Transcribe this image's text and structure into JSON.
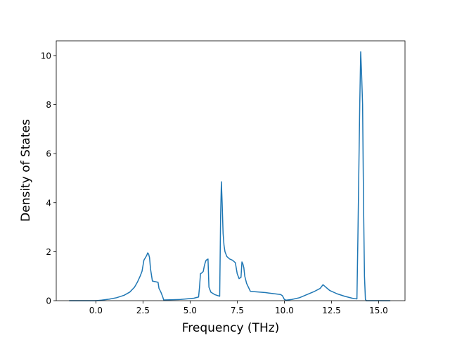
{
  "chart_data": {
    "type": "line",
    "title": "",
    "xlabel": "Frequency (THz)",
    "ylabel": "Density of States",
    "xlim": [
      -2.1,
      16.4
    ],
    "ylim": [
      0,
      10.6
    ],
    "grid": false,
    "x_ticks": [
      0.0,
      2.5,
      5.0,
      7.5,
      10.0,
      12.5,
      15.0
    ],
    "x_tick_labels": [
      "0.0",
      "2.5",
      "5.0",
      "7.5",
      "10.0",
      "12.5",
      "15.0"
    ],
    "y_ticks": [
      0,
      2,
      4,
      6,
      8,
      10
    ],
    "y_tick_labels": [
      "0",
      "2",
      "4",
      "6",
      "8",
      "10"
    ],
    "series": [
      {
        "color": "#1f77b4",
        "x": [
          -1.4,
          0.0,
          0.3,
          0.7,
          1.1,
          1.5,
          1.8,
          2.05,
          2.2,
          2.35,
          2.45,
          2.55,
          2.7,
          2.75,
          2.8,
          2.85,
          2.9,
          3.0,
          3.3,
          3.35,
          3.45,
          3.55,
          3.6,
          4.5,
          5.2,
          5.45,
          5.5,
          5.55,
          5.65,
          5.7,
          5.75,
          5.8,
          5.85,
          5.95,
          6.0,
          6.1,
          6.3,
          6.5,
          6.57,
          6.62,
          6.66,
          6.7,
          6.75,
          6.8,
          6.85,
          6.95,
          7.1,
          7.25,
          7.4,
          7.5,
          7.6,
          7.7,
          7.75,
          7.8,
          7.85,
          7.9,
          8.0,
          8.2,
          9.0,
          9.8,
          9.9,
          10.0,
          10.1,
          10.4,
          10.8,
          11.2,
          11.6,
          11.9,
          12.05,
          12.2,
          12.4,
          12.8,
          13.2,
          13.6,
          13.85,
          13.9,
          14.0,
          14.05,
          14.1,
          14.15,
          14.2,
          14.25,
          14.3,
          14.35,
          14.4,
          15.6
        ],
        "y": [
          0.0,
          0.0,
          0.02,
          0.06,
          0.12,
          0.22,
          0.35,
          0.55,
          0.75,
          1.0,
          1.2,
          1.65,
          1.85,
          1.95,
          1.9,
          1.75,
          1.3,
          0.8,
          0.75,
          0.5,
          0.35,
          0.15,
          0.03,
          0.05,
          0.1,
          0.15,
          0.55,
          1.1,
          1.15,
          1.2,
          1.4,
          1.55,
          1.65,
          1.7,
          0.55,
          0.35,
          0.25,
          0.2,
          0.18,
          3.5,
          4.85,
          4.0,
          2.75,
          2.25,
          2.0,
          1.8,
          1.7,
          1.65,
          1.55,
          1.1,
          0.9,
          0.95,
          1.58,
          1.5,
          1.35,
          1.0,
          0.7,
          0.38,
          0.33,
          0.25,
          0.2,
          0.05,
          0.02,
          0.05,
          0.12,
          0.25,
          0.38,
          0.5,
          0.65,
          0.55,
          0.42,
          0.28,
          0.18,
          0.1,
          0.07,
          2.5,
          8.0,
          10.15,
          9.2,
          8.0,
          4.0,
          1.0,
          0.05,
          0.0,
          0.0,
          0.0
        ]
      }
    ]
  }
}
